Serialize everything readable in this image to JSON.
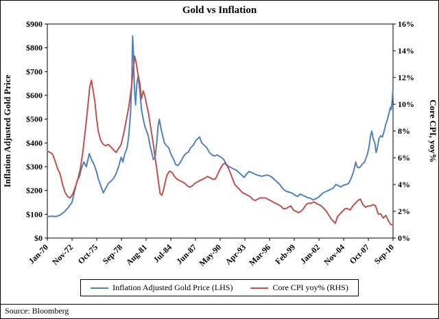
{
  "chart_data": {
    "type": "line",
    "title": "Gold vs Inflation",
    "source": "Source: Bloomberg",
    "xlabel": "",
    "ylabel_left": "Inflation Adjusted Gold Price",
    "ylabel_right": "Core CPI, yoy%",
    "x_domain": [
      1970.0,
      2010.75
    ],
    "x_ticks": [
      "Jan-70",
      "Nov-72",
      "Oct-75",
      "Sep-78",
      "Aug-81",
      "Jul-84",
      "Jun-87",
      "May-90",
      "Apr-93",
      "Mar-96",
      "Feb-99",
      "Jan-02",
      "Nov-04",
      "Oct-07",
      "Sep-10"
    ],
    "y_left_ticks": [
      "$0",
      "$100",
      "$200",
      "$300",
      "$400",
      "$500",
      "$600",
      "$700",
      "$800",
      "$900"
    ],
    "y_left_max": 900,
    "y_right_ticks": [
      "0%",
      "2%",
      "4%",
      "6%",
      "8%",
      "10%",
      "12%",
      "14%",
      "16%"
    ],
    "y_right_max": 16,
    "grid": false,
    "legend_position": "bottom",
    "series": [
      {
        "id": "gold",
        "name": "Inflation Adjusted Gold Price",
        "legend_label": "Inflation Adjusted Gold Price (LHS)",
        "axis": "left",
        "color": "#4F81BD",
        "points": [
          [
            1970.04,
            90
          ],
          [
            1970.5,
            92
          ],
          [
            1971.0,
            90
          ],
          [
            1971.5,
            97
          ],
          [
            1972.0,
            110
          ],
          [
            1972.5,
            130
          ],
          [
            1972.9,
            150
          ],
          [
            1973.2,
            195
          ],
          [
            1973.5,
            240
          ],
          [
            1973.8,
            260
          ],
          [
            1974.0,
            290
          ],
          [
            1974.3,
            320
          ],
          [
            1974.6,
            300
          ],
          [
            1974.95,
            355
          ],
          [
            1975.2,
            330
          ],
          [
            1975.5,
            310
          ],
          [
            1975.8,
            280
          ],
          [
            1976.0,
            250
          ],
          [
            1976.3,
            220
          ],
          [
            1976.6,
            190
          ],
          [
            1976.9,
            210
          ],
          [
            1977.2,
            230
          ],
          [
            1977.5,
            240
          ],
          [
            1977.8,
            250
          ],
          [
            1978.1,
            270
          ],
          [
            1978.4,
            300
          ],
          [
            1978.7,
            340
          ],
          [
            1978.9,
            320
          ],
          [
            1979.1,
            350
          ],
          [
            1979.4,
            380
          ],
          [
            1979.6,
            430
          ],
          [
            1979.8,
            520
          ],
          [
            1979.95,
            650
          ],
          [
            1980.05,
            850
          ],
          [
            1980.15,
            780
          ],
          [
            1980.25,
            640
          ],
          [
            1980.4,
            560
          ],
          [
            1980.55,
            650
          ],
          [
            1980.7,
            680
          ],
          [
            1980.9,
            620
          ],
          [
            1981.1,
            540
          ],
          [
            1981.3,
            500
          ],
          [
            1981.5,
            470
          ],
          [
            1981.7,
            450
          ],
          [
            1981.9,
            430
          ],
          [
            1982.1,
            390
          ],
          [
            1982.3,
            360
          ],
          [
            1982.5,
            330
          ],
          [
            1982.7,
            340
          ],
          [
            1982.9,
            400
          ],
          [
            1983.05,
            470
          ],
          [
            1983.2,
            500
          ],
          [
            1983.4,
            460
          ],
          [
            1983.6,
            430
          ],
          [
            1983.8,
            400
          ],
          [
            1984.0,
            390
          ],
          [
            1984.3,
            380
          ],
          [
            1984.6,
            350
          ],
          [
            1984.9,
            330
          ],
          [
            1985.1,
            310
          ],
          [
            1985.4,
            305
          ],
          [
            1985.7,
            320
          ],
          [
            1986.0,
            340
          ],
          [
            1986.3,
            355
          ],
          [
            1986.6,
            360
          ],
          [
            1986.9,
            380
          ],
          [
            1987.2,
            390
          ],
          [
            1987.5,
            410
          ],
          [
            1987.8,
            420
          ],
          [
            1987.95,
            425
          ],
          [
            1988.2,
            400
          ],
          [
            1988.5,
            390
          ],
          [
            1988.8,
            380
          ],
          [
            1989.1,
            360
          ],
          [
            1989.4,
            350
          ],
          [
            1989.7,
            345
          ],
          [
            1990.0,
            350
          ],
          [
            1990.2,
            345
          ],
          [
            1990.5,
            340
          ],
          [
            1990.8,
            330
          ],
          [
            1991.1,
            310
          ],
          [
            1991.4,
            300
          ],
          [
            1991.7,
            295
          ],
          [
            1992.0,
            290
          ],
          [
            1992.3,
            285
          ],
          [
            1992.6,
            275
          ],
          [
            1992.9,
            265
          ],
          [
            1993.2,
            255
          ],
          [
            1993.5,
            270
          ],
          [
            1993.8,
            280
          ],
          [
            1994.1,
            275
          ],
          [
            1994.4,
            270
          ],
          [
            1994.7,
            265
          ],
          [
            1995.0,
            262
          ],
          [
            1995.3,
            260
          ],
          [
            1995.6,
            263
          ],
          [
            1995.9,
            265
          ],
          [
            1996.2,
            262
          ],
          [
            1996.5,
            255
          ],
          [
            1996.8,
            245
          ],
          [
            1997.1,
            235
          ],
          [
            1997.4,
            225
          ],
          [
            1997.7,
            210
          ],
          [
            1998.0,
            200
          ],
          [
            1998.3,
            195
          ],
          [
            1998.6,
            192
          ],
          [
            1998.9,
            188
          ],
          [
            1999.2,
            180
          ],
          [
            1999.5,
            175
          ],
          [
            1999.8,
            185
          ],
          [
            2000.1,
            180
          ],
          [
            2000.4,
            175
          ],
          [
            2000.7,
            170
          ],
          [
            2001.0,
            168
          ],
          [
            2001.3,
            160
          ],
          [
            2001.6,
            165
          ],
          [
            2001.9,
            170
          ],
          [
            2002.2,
            180
          ],
          [
            2002.5,
            190
          ],
          [
            2002.8,
            195
          ],
          [
            2003.1,
            200
          ],
          [
            2003.4,
            205
          ],
          [
            2003.7,
            210
          ],
          [
            2004.0,
            225
          ],
          [
            2004.3,
            220
          ],
          [
            2004.6,
            215
          ],
          [
            2004.9,
            222
          ],
          [
            2005.2,
            225
          ],
          [
            2005.5,
            230
          ],
          [
            2005.8,
            250
          ],
          [
            2006.1,
            280
          ],
          [
            2006.35,
            320
          ],
          [
            2006.5,
            300
          ],
          [
            2006.7,
            295
          ],
          [
            2006.9,
            300
          ],
          [
            2007.1,
            310
          ],
          [
            2007.4,
            320
          ],
          [
            2007.7,
            350
          ],
          [
            2007.9,
            380
          ],
          [
            2008.1,
            430
          ],
          [
            2008.25,
            450
          ],
          [
            2008.4,
            420
          ],
          [
            2008.6,
            400
          ],
          [
            2008.75,
            360
          ],
          [
            2008.9,
            380
          ],
          [
            2009.1,
            420
          ],
          [
            2009.3,
            430
          ],
          [
            2009.5,
            425
          ],
          [
            2009.7,
            450
          ],
          [
            2009.9,
            480
          ],
          [
            2010.1,
            500
          ],
          [
            2010.3,
            530
          ],
          [
            2010.45,
            550
          ],
          [
            2010.55,
            540
          ],
          [
            2010.65,
            580
          ],
          [
            2010.72,
            620
          ]
        ]
      },
      {
        "id": "cpi",
        "name": "Core CPI yoy%",
        "legend_label": "Core CPI yoy% (RHS)",
        "axis": "right",
        "color": "#C0504D",
        "points": [
          [
            1970.04,
            6.5
          ],
          [
            1970.3,
            6.4
          ],
          [
            1970.6,
            6.3
          ],
          [
            1970.9,
            5.8
          ],
          [
            1971.2,
            5.2
          ],
          [
            1971.5,
            4.8
          ],
          [
            1971.8,
            4.0
          ],
          [
            1972.1,
            3.4
          ],
          [
            1972.4,
            3.1
          ],
          [
            1972.7,
            3.0
          ],
          [
            1973.0,
            3.3
          ],
          [
            1973.3,
            3.8
          ],
          [
            1973.6,
            4.4
          ],
          [
            1973.9,
            5.2
          ],
          [
            1974.2,
            6.5
          ],
          [
            1974.5,
            8.2
          ],
          [
            1974.8,
            10.0
          ],
          [
            1975.0,
            11.3
          ],
          [
            1975.2,
            11.8
          ],
          [
            1975.4,
            11.0
          ],
          [
            1975.6,
            10.2
          ],
          [
            1975.8,
            9.0
          ],
          [
            1976.0,
            8.0
          ],
          [
            1976.3,
            7.3
          ],
          [
            1976.6,
            7.0
          ],
          [
            1976.9,
            6.9
          ],
          [
            1977.2,
            7.0
          ],
          [
            1977.5,
            6.8
          ],
          [
            1977.8,
            6.6
          ],
          [
            1978.1,
            6.4
          ],
          [
            1978.4,
            6.7
          ],
          [
            1978.7,
            7.0
          ],
          [
            1979.0,
            7.8
          ],
          [
            1979.3,
            8.8
          ],
          [
            1979.6,
            9.8
          ],
          [
            1979.9,
            11.2
          ],
          [
            1980.1,
            12.4
          ],
          [
            1980.3,
            13.6
          ],
          [
            1980.5,
            13.0
          ],
          [
            1980.7,
            12.2
          ],
          [
            1980.9,
            11.6
          ],
          [
            1981.1,
            10.4
          ],
          [
            1981.3,
            11.0
          ],
          [
            1981.5,
            10.6
          ],
          [
            1981.7,
            10.0
          ],
          [
            1981.9,
            9.4
          ],
          [
            1982.1,
            8.6
          ],
          [
            1982.3,
            7.8
          ],
          [
            1982.5,
            7.0
          ],
          [
            1982.7,
            6.0
          ],
          [
            1982.9,
            5.2
          ],
          [
            1983.1,
            4.2
          ],
          [
            1983.3,
            3.3
          ],
          [
            1983.5,
            3.2
          ],
          [
            1983.7,
            3.6
          ],
          [
            1983.9,
            4.2
          ],
          [
            1984.1,
            4.7
          ],
          [
            1984.4,
            5.0
          ],
          [
            1984.7,
            4.9
          ],
          [
            1985.0,
            4.6
          ],
          [
            1985.3,
            4.4
          ],
          [
            1985.6,
            4.3
          ],
          [
            1985.9,
            4.2
          ],
          [
            1986.2,
            4.1
          ],
          [
            1986.5,
            3.9
          ],
          [
            1986.8,
            3.8
          ],
          [
            1987.1,
            3.9
          ],
          [
            1987.4,
            4.1
          ],
          [
            1987.7,
            4.2
          ],
          [
            1988.0,
            4.3
          ],
          [
            1988.3,
            4.4
          ],
          [
            1988.6,
            4.5
          ],
          [
            1988.9,
            4.6
          ],
          [
            1989.2,
            4.5
          ],
          [
            1989.5,
            4.4
          ],
          [
            1989.8,
            4.4
          ],
          [
            1990.1,
            4.8
          ],
          [
            1990.4,
            5.2
          ],
          [
            1990.7,
            5.5
          ],
          [
            1990.9,
            5.6
          ],
          [
            1991.2,
            5.4
          ],
          [
            1991.5,
            5.0
          ],
          [
            1991.8,
            4.5
          ],
          [
            1992.1,
            4.0
          ],
          [
            1992.4,
            3.8
          ],
          [
            1992.7,
            3.6
          ],
          [
            1993.0,
            3.4
          ],
          [
            1993.3,
            3.3
          ],
          [
            1993.6,
            3.2
          ],
          [
            1993.9,
            3.1
          ],
          [
            1994.2,
            2.9
          ],
          [
            1994.5,
            2.8
          ],
          [
            1994.8,
            2.9
          ],
          [
            1995.1,
            3.0
          ],
          [
            1995.4,
            3.0
          ],
          [
            1995.7,
            3.0
          ],
          [
            1996.0,
            2.9
          ],
          [
            1996.3,
            2.8
          ],
          [
            1996.6,
            2.7
          ],
          [
            1996.9,
            2.6
          ],
          [
            1997.2,
            2.5
          ],
          [
            1997.5,
            2.4
          ],
          [
            1997.8,
            2.2
          ],
          [
            1998.1,
            2.2
          ],
          [
            1998.4,
            2.3
          ],
          [
            1998.7,
            2.4
          ],
          [
            1999.0,
            2.1
          ],
          [
            1999.3,
            2.0
          ],
          [
            1999.6,
            1.9
          ],
          [
            1999.9,
            2.0
          ],
          [
            2000.2,
            2.2
          ],
          [
            2000.5,
            2.5
          ],
          [
            2000.8,
            2.6
          ],
          [
            2001.1,
            2.6
          ],
          [
            2001.4,
            2.7
          ],
          [
            2001.7,
            2.6
          ],
          [
            2002.0,
            2.5
          ],
          [
            2002.3,
            2.4
          ],
          [
            2002.6,
            2.2
          ],
          [
            2002.9,
            2.0
          ],
          [
            2003.2,
            1.7
          ],
          [
            2003.5,
            1.4
          ],
          [
            2003.8,
            1.2
          ],
          [
            2003.95,
            1.1
          ],
          [
            2004.2,
            1.6
          ],
          [
            2004.5,
            1.8
          ],
          [
            2004.8,
            2.0
          ],
          [
            2005.1,
            2.2
          ],
          [
            2005.4,
            2.2
          ],
          [
            2005.7,
            2.1
          ],
          [
            2006.0,
            2.4
          ],
          [
            2006.3,
            2.6
          ],
          [
            2006.6,
            2.8
          ],
          [
            2006.9,
            2.9
          ],
          [
            2007.2,
            2.5
          ],
          [
            2007.5,
            2.3
          ],
          [
            2007.8,
            2.4
          ],
          [
            2008.1,
            2.4
          ],
          [
            2008.4,
            2.5
          ],
          [
            2008.7,
            2.4
          ],
          [
            2009.0,
            1.8
          ],
          [
            2009.3,
            1.8
          ],
          [
            2009.6,
            1.5
          ],
          [
            2009.9,
            1.7
          ],
          [
            2010.2,
            1.3
          ],
          [
            2010.5,
            1.0
          ],
          [
            2010.72,
            1.0
          ]
        ]
      }
    ]
  }
}
